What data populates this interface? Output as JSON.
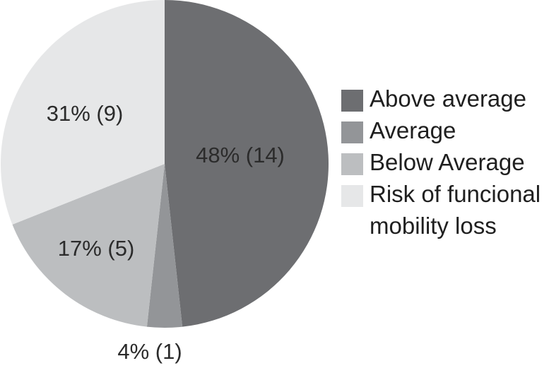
{
  "chart_data": {
    "type": "pie",
    "title": "",
    "slices": [
      {
        "label": "Above average",
        "percent": 48,
        "count": 14,
        "display": "48% (14)",
        "color": "#6d6e71"
      },
      {
        "label": "Average",
        "percent": 4,
        "count": 1,
        "display": "4% (1)",
        "color": "#939598"
      },
      {
        "label": "Below Average",
        "percent": 17,
        "count": 5,
        "display": "17% (5)",
        "color": "#bcbec0"
      },
      {
        "label": "Risk of funcional mobility loss",
        "percent": 31,
        "count": 9,
        "display": "31% (9)",
        "color": "#e6e7e8"
      }
    ],
    "legend": {
      "placement": "right",
      "entries": [
        {
          "lines": [
            "Above average"
          ]
        },
        {
          "lines": [
            "Average"
          ]
        },
        {
          "lines": [
            "Below Average"
          ]
        },
        {
          "lines": [
            "Risk of funcional",
            "mobility loss"
          ]
        }
      ]
    }
  }
}
